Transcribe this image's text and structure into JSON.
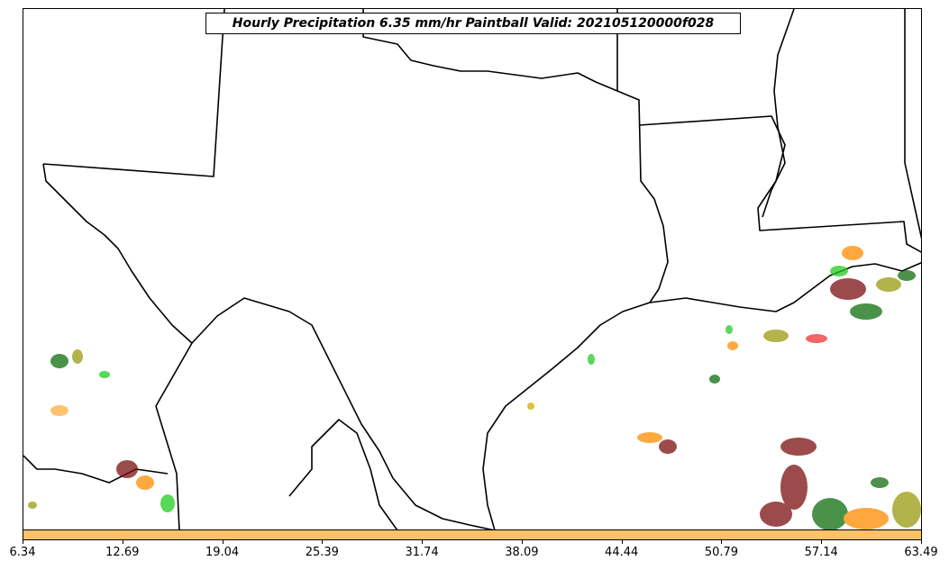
{
  "title": "Hourly Precipitation 6.35 mm/hr Paintball Valid: 202105120000f028",
  "colorbar": {
    "color": "#fdc166",
    "ticks": [
      "6.34",
      "12.69",
      "19.04",
      "25.39",
      "31.74",
      "38.09",
      "44.44",
      "50.79",
      "57.14",
      "63.49"
    ]
  },
  "map": {
    "land_color": "#ffffff",
    "border_color": "#000000",
    "paintball_colors": [
      "#7a1010",
      "#0e6e0e",
      "#22cc22",
      "#ff8c00",
      "#9a9a10",
      "#ee3333",
      "#fdb040"
    ]
  }
}
